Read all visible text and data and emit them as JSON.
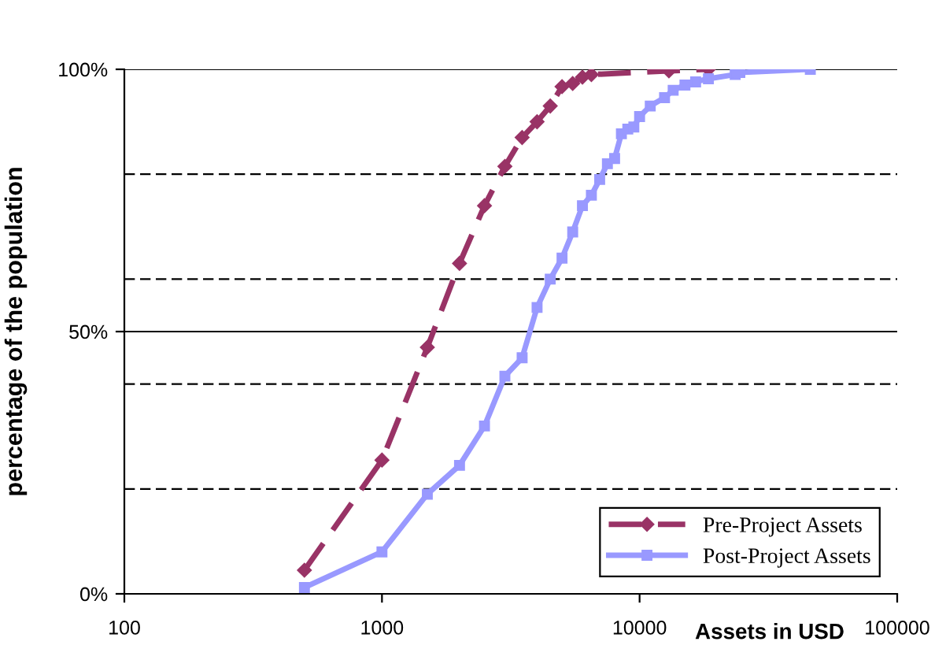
{
  "chart_data": {
    "type": "line",
    "xlabel": "Assets in USD",
    "ylabel": "percentage of the population",
    "log": "x",
    "xlim": [
      100,
      100000
    ],
    "xticks": [
      100,
      1000,
      10000,
      100000
    ],
    "ylim": [
      0,
      100
    ],
    "yticks": [
      {
        "value": 0,
        "label": "0%"
      },
      {
        "value": 50,
        "label": "50%"
      },
      {
        "value": 100,
        "label": "100%"
      }
    ],
    "grid": "y",
    "legend": "bottom right",
    "ref_lines": [
      {
        "axis": "y",
        "value": 20,
        "line_style": "dashed",
        "color": "#000000"
      },
      {
        "axis": "y",
        "value": 40,
        "line_style": "dashed",
        "color": "#000000"
      },
      {
        "axis": "y",
        "value": 60,
        "line_style": "dashed",
        "color": "#000000"
      },
      {
        "axis": "y",
        "value": 80,
        "line_style": "dashed",
        "color": "#000000"
      }
    ],
    "series": [
      {
        "name": "Pre-Project Assets",
        "color": "#993366",
        "marker": "diamond",
        "line_style": "dashed",
        "x": [
          500,
          1000,
          1500,
          2000,
          2500,
          3000,
          3500,
          4000,
          4500,
          5000,
          5500,
          6000,
          6500,
          13000,
          18500
        ],
        "values": [
          4.5,
          25.5,
          47,
          63,
          74,
          81.5,
          87,
          90,
          93,
          96.7,
          97.3,
          98.5,
          99,
          99.7,
          100
        ]
      },
      {
        "name": "Post-Project Assets",
        "color": "#9999ff",
        "marker": "square",
        "line_style": "solid",
        "x": [
          500,
          1000,
          1500,
          2000,
          2500,
          3000,
          3500,
          4000,
          4500,
          5000,
          5500,
          6000,
          6500,
          7000,
          7500,
          8000,
          8500,
          9000,
          9500,
          10000,
          11000,
          12500,
          13500,
          15000,
          16500,
          18500,
          23500,
          24500,
          46000
        ],
        "values": [
          1.2,
          8,
          19,
          24.5,
          32,
          41.5,
          45,
          54.6,
          60,
          64,
          69,
          74,
          76,
          79,
          82,
          83,
          87.7,
          88.6,
          89,
          91,
          93,
          94.6,
          96,
          97,
          97.6,
          98.2,
          99,
          99.4,
          100
        ]
      }
    ]
  }
}
